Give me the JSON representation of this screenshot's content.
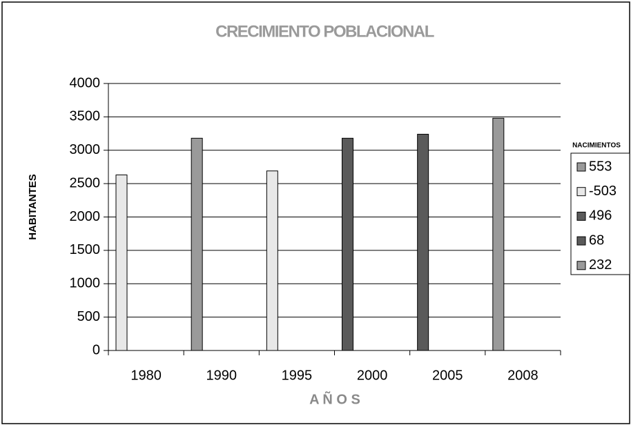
{
  "chart_data": {
    "type": "bar",
    "title": "CRECIMIENTO POBLACIONAL",
    "y_label": "HABITANTES",
    "x_label": "A Ñ O S",
    "categories": [
      "1980",
      "1990",
      "1995",
      "2000",
      "2005",
      "2008"
    ],
    "values": [
      2630,
      3180,
      2690,
      3180,
      3240,
      3480
    ],
    "colors": [
      "#e8e8e8",
      "#9a9a9a",
      "#e8e8e8",
      "#5a5a5a",
      "#5a5a5a",
      "#9a9a9a"
    ],
    "ylim": [
      0,
      4000
    ],
    "yticks": [
      0,
      500,
      1000,
      1500,
      2000,
      2500,
      3000,
      3500,
      4000
    ],
    "grid": true,
    "legend": {
      "title": "NACIMIENTOS",
      "position": "right",
      "entries": [
        {
          "name": "553",
          "color": "#9a9a9a"
        },
        {
          "name": "-503",
          "color": "#e8e8e8"
        },
        {
          "name": "496",
          "color": "#5a5a5a"
        },
        {
          "name": "68",
          "color": "#5a5a5a"
        },
        {
          "name": "232",
          "color": "#9a9a9a"
        }
      ]
    }
  }
}
